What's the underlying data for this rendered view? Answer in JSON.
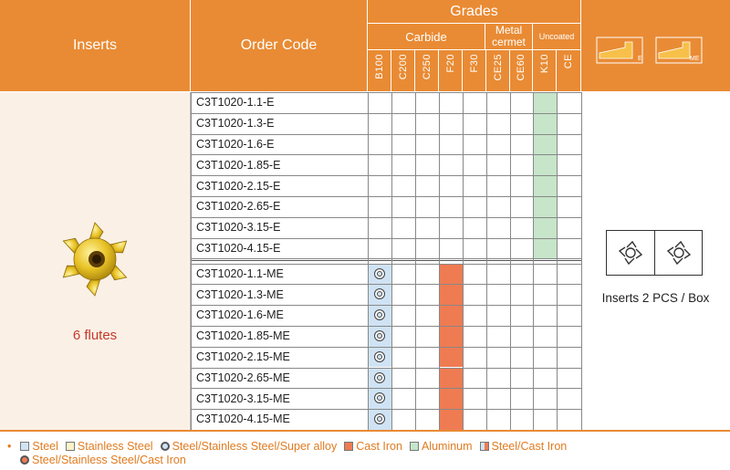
{
  "header": {
    "inserts": "Inserts",
    "order_code": "Order Code",
    "grades": "Grades",
    "carbide": "Carbide",
    "metal_cermet": [
      "Metal",
      "cermet"
    ],
    "uncoated": "Uncoated",
    "grade_columns": [
      "B100",
      "C200",
      "C250",
      "F20",
      "F30",
      "CE25",
      "CE60",
      "K10",
      "CE"
    ],
    "geometry_e": "E",
    "geometry_me": "ME"
  },
  "insert": {
    "flutes_label": "6 flutes"
  },
  "packaging": {
    "label": "Inserts 2 PCS / Box"
  },
  "rows": [
    {
      "code": "C3T1020-1.1-E",
      "k10": true
    },
    {
      "code": "C3T1020-1.3-E",
      "k10": true
    },
    {
      "code": "C3T1020-1.6-E",
      "k10": true
    },
    {
      "code": "C3T1020-1.85-E",
      "k10": true
    },
    {
      "code": "C3T1020-2.15-E",
      "k10": true
    },
    {
      "code": "C3T1020-2.65-E",
      "k10": true
    },
    {
      "code": "C3T1020-3.15-E",
      "k10": true
    },
    {
      "code": "C3T1020-4.15-E",
      "k10": true
    },
    {
      "code": "C3T1020-1.1-ME",
      "b100": true,
      "f20": true
    },
    {
      "code": "C3T1020-1.3-ME",
      "b100": true,
      "f20": true
    },
    {
      "code": "C3T1020-1.6-ME",
      "b100": true,
      "f20": true
    },
    {
      "code": "C3T1020-1.85-ME",
      "b100": true,
      "f20": true
    },
    {
      "code": "C3T1020-2.15-ME",
      "b100": true,
      "f20": true
    },
    {
      "code": "C3T1020-2.65-ME",
      "b100": true,
      "f20": true
    },
    {
      "code": "C3T1020-3.15-ME",
      "b100": true,
      "f20": true
    },
    {
      "code": "C3T1020-4.15-ME",
      "b100": true,
      "f20": true
    }
  ],
  "legend": {
    "bullet": "•",
    "items": [
      {
        "label": "Steel",
        "color": "#cfe3f4"
      },
      {
        "label": "Stainless Steel",
        "color": "#fbf3c8"
      },
      {
        "label": "Steel/Stainless Steel/Super alloy",
        "color": "#cfe3f4"
      },
      {
        "label": "Cast Iron",
        "color": "#ef7b52"
      },
      {
        "label": "Aluminum",
        "color": "#c6e5c9"
      },
      {
        "label": "Steel/Cast Iron",
        "color": "#cfe3f4"
      }
    ],
    "item_last": {
      "label": "Steel/Stainless Steel/Cast Iron",
      "color": "#ef7b52"
    }
  },
  "colors": {
    "header": "#e98b34",
    "steel": "#cfe3f4",
    "cast_iron": "#ef7b52",
    "aluminum": "#c6e5c9"
  }
}
